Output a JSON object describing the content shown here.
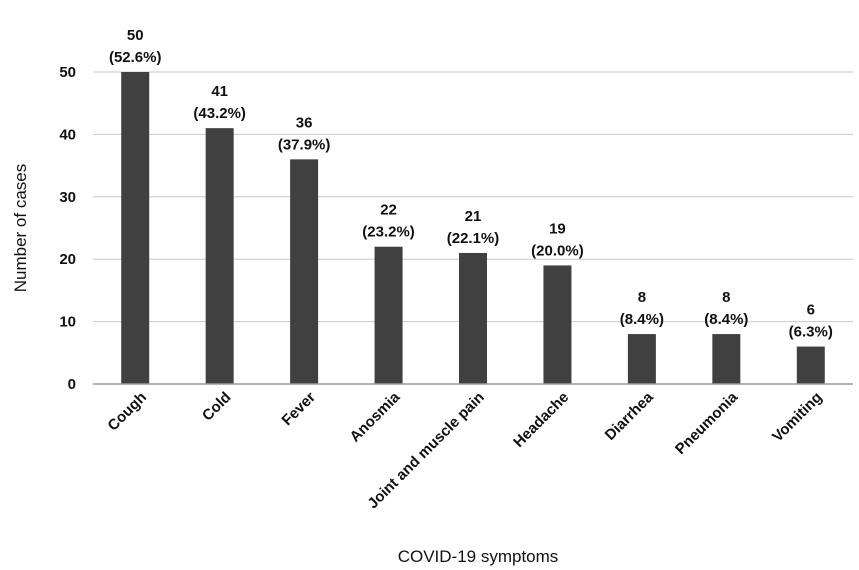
{
  "chart_data": {
    "type": "bar",
    "title": "",
    "xlabel": "COVID-19 symptoms",
    "ylabel": "Number of cases",
    "ylim": [
      0,
      50
    ],
    "yticks": [
      "0",
      "10",
      "20",
      "30",
      "40",
      "50"
    ],
    "grid": "horizontal",
    "bar_color": "#404040",
    "categories": [
      "Cough",
      "Cold",
      "Fever",
      "Anosmia",
      "Joint and muscle pain",
      "Headache",
      "Diarrhea",
      "Pneumonia",
      "Vomiting"
    ],
    "values": [
      50,
      41,
      36,
      22,
      21,
      19,
      8,
      8,
      6
    ],
    "data_labels": [
      [
        "50",
        "(52.6%)"
      ],
      [
        "41",
        "(43.2%)"
      ],
      [
        "36",
        "(37.9%)"
      ],
      [
        "22",
        "(23.2%)"
      ],
      [
        "21",
        "(22.1%)"
      ],
      [
        "19",
        "(20.0%)"
      ],
      [
        "8",
        "(8.4%)"
      ],
      [
        "8",
        "(8.4%)"
      ],
      [
        "6",
        "(6.3%)"
      ]
    ]
  }
}
